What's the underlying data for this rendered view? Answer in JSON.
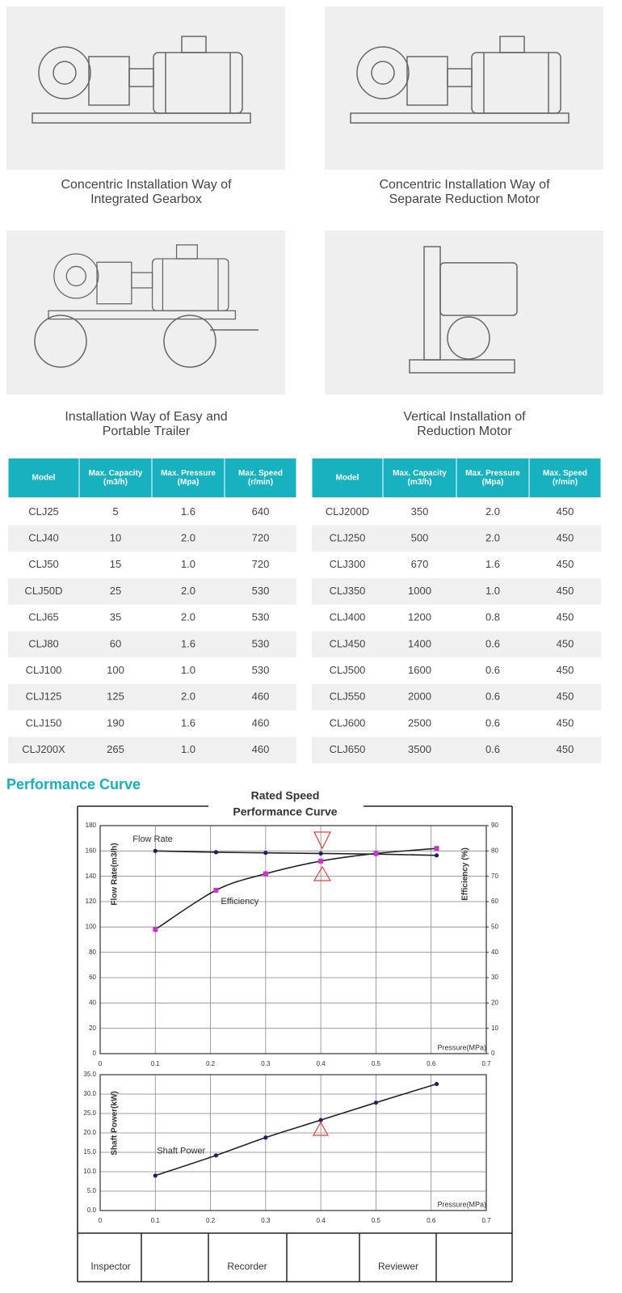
{
  "installations": [
    {
      "caption": [
        "Concentric Installation Way of",
        "Integrated Gearbox"
      ]
    },
    {
      "caption": [
        "Concentric Installation Way of",
        "Separate Reduction Motor"
      ]
    },
    {
      "caption": [
        "Installation Way of Easy and",
        "Portable Trailer"
      ]
    },
    {
      "caption": [
        "Vertical Installation of",
        "Reduction Motor"
      ]
    }
  ],
  "tables": [
    {
      "header": [
        [
          "Model"
        ],
        [
          "Max. Capacity",
          "(m3/h)"
        ],
        [
          "Max. Pressure",
          "(Mpa)"
        ],
        [
          "Max. Speed",
          "(r/min)"
        ]
      ],
      "rows": [
        [
          "CLJ25",
          "5",
          "1.6",
          "640"
        ],
        [
          "CLJ40",
          "10",
          "2.0",
          "720"
        ],
        [
          "CLJ50",
          "15",
          "1.0",
          "720"
        ],
        [
          "CLJ50D",
          "25",
          "2.0",
          "530"
        ],
        [
          "CLJ65",
          "35",
          "2.0",
          "530"
        ],
        [
          "CLJ80",
          "60",
          "1.6",
          "530"
        ],
        [
          "CLJ100",
          "100",
          "1.0",
          "530"
        ],
        [
          "CLJ125",
          "125",
          "2.0",
          "460"
        ],
        [
          "CLJ150",
          "190",
          "1.6",
          "460"
        ],
        [
          "CLJ200X",
          "265",
          "1.0",
          "460"
        ]
      ]
    },
    {
      "header": [
        [
          "Model"
        ],
        [
          "Max. Capacity",
          "(m3/h)"
        ],
        [
          "Max. Pressure",
          "(Mpa)"
        ],
        [
          "Max. Speed",
          "(r/min)"
        ]
      ],
      "rows": [
        [
          "CLJ200D",
          "350",
          "2.0",
          "450"
        ],
        [
          "CLJ250",
          "500",
          "2.0",
          "450"
        ],
        [
          "CLJ300",
          "670",
          "1.6",
          "450"
        ],
        [
          "CLJ350",
          "1000",
          "1.0",
          "450"
        ],
        [
          "CLJ400",
          "1200",
          "0.8",
          "450"
        ],
        [
          "CLJ450",
          "1400",
          "0.6",
          "450"
        ],
        [
          "CLJ500",
          "1600",
          "0.6",
          "450"
        ],
        [
          "CLJ550",
          "2000",
          "0.6",
          "450"
        ],
        [
          "CLJ600",
          "2500",
          "0.6",
          "450"
        ],
        [
          "CLJ650",
          "3500",
          "0.6",
          "450"
        ]
      ]
    }
  ],
  "section_title": "Performance Curve",
  "performance": {
    "title": [
      "Rated Speed",
      "Performance Curve"
    ],
    "footer": [
      "Inspector",
      "Recorder",
      "Reviewer"
    ]
  },
  "chart_data": [
    {
      "type": "line",
      "x": [
        0.1,
        0.21,
        0.3,
        0.4,
        0.5,
        0.61
      ],
      "series": [
        {
          "name": "Flow Rate",
          "color": "#1b1f6b",
          "values": [
            160,
            159,
            158.5,
            158,
            157.5,
            156.5
          ]
        },
        {
          "name": "Efficiency",
          "color": "#cc33cc",
          "axis": "y2",
          "values": [
            49,
            64.5,
            71,
            76,
            79,
            81
          ]
        }
      ],
      "xlim": [
        0,
        0.7
      ],
      "xticks": [
        0,
        0.1,
        0.2,
        0.3,
        0.4,
        0.5,
        0.6,
        0.7
      ],
      "ylim": [
        0,
        180
      ],
      "yticks": [
        0,
        20,
        40,
        60,
        80,
        100,
        120,
        140,
        160,
        180
      ],
      "y2lim": [
        0,
        90
      ],
      "y2ticks": [
        0,
        10,
        20,
        30,
        40,
        50,
        60,
        70,
        80,
        90
      ],
      "y_label": "Flow Rate(m3/h)",
      "y2_label": "Efficiency (%)",
      "x_label": "Pressure(MPa)",
      "grid": true
    },
    {
      "type": "line",
      "x": [
        0.1,
        0.21,
        0.3,
        0.4,
        0.5,
        0.61
      ],
      "series": [
        {
          "name": "Shaft Power",
          "color": "#1b1f6b",
          "values": [
            9,
            14.2,
            18.8,
            23.3,
            27.8,
            32.6
          ]
        }
      ],
      "xlim": [
        0,
        0.7
      ],
      "xticks": [
        0,
        0.1,
        0.2,
        0.3,
        0.4,
        0.5,
        0.6,
        0.7
      ],
      "ylim": [
        0,
        35
      ],
      "yticks": [
        {
          "value": 0,
          "label": "0.0"
        },
        {
          "value": 5,
          "label": "5.0"
        },
        {
          "value": 10,
          "label": "10.0"
        },
        {
          "value": 15,
          "label": "15.0"
        },
        {
          "value": 20,
          "label": "20.0"
        },
        {
          "value": 25,
          "label": "25.0"
        },
        {
          "value": 30,
          "label": "30.0"
        },
        {
          "value": 35,
          "label": "35.0"
        }
      ],
      "y_label": "Shaft Power(kW)",
      "x_label": "Pressure(MPa)",
      "grid": true
    }
  ]
}
